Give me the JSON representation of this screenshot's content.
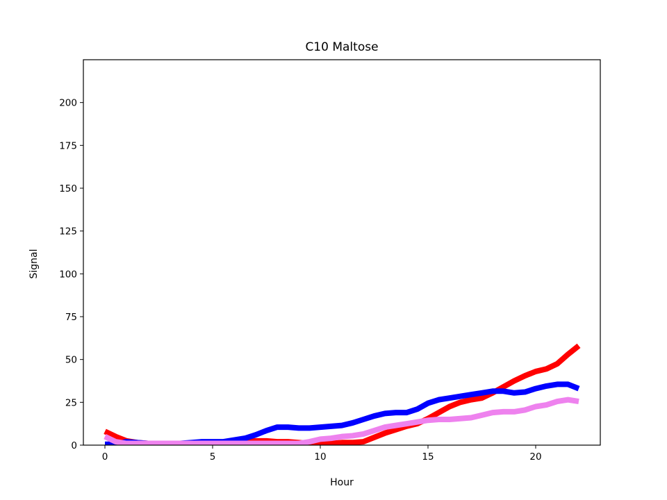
{
  "chart_data": {
    "type": "line",
    "title": "C10 Maltose",
    "xlabel": "Hour",
    "ylabel": "Signal",
    "xlim": [
      -1,
      23
    ],
    "ylim": [
      0,
      225
    ],
    "xticks": [
      0,
      5,
      10,
      15,
      20
    ],
    "yticks": [
      0,
      25,
      50,
      75,
      100,
      125,
      150,
      175,
      200
    ],
    "grid": false,
    "legend": false,
    "x": [
      0,
      0.5,
      1,
      1.5,
      2,
      2.5,
      3,
      3.5,
      4,
      4.5,
      5,
      5.5,
      6,
      6.5,
      7,
      7.5,
      8,
      8.5,
      9,
      9.5,
      10,
      10.5,
      11,
      11.5,
      12,
      12.5,
      13,
      13.5,
      14,
      14.5,
      15,
      15.5,
      16,
      16.5,
      17,
      17.5,
      18,
      18.5,
      19,
      19.5,
      20,
      20.5,
      21,
      21.5,
      22
    ],
    "series": [
      {
        "color": "#ff0000",
        "values": [
          8,
          5,
          2.5,
          1.5,
          1,
          1,
          1,
          1,
          1,
          1,
          1,
          1,
          1.5,
          2,
          2.5,
          2.5,
          2,
          2,
          1.5,
          1,
          0.5,
          1,
          1.5,
          1.5,
          2,
          4.5,
          7,
          9,
          11,
          12.5,
          15.5,
          19,
          22.5,
          25,
          26.5,
          27.5,
          30.5,
          34,
          37.5,
          40.5,
          43,
          44.5,
          47.5,
          53,
          58
        ]
      },
      {
        "color": "#0000ff",
        "values": [
          0.5,
          0.5,
          2,
          1.5,
          1,
          1,
          1,
          1,
          1.5,
          2,
          2,
          2,
          3,
          4,
          6,
          8.5,
          10.5,
          10.5,
          10,
          10,
          10.5,
          11,
          11.5,
          13,
          15,
          17,
          18.5,
          19,
          19,
          21,
          24.5,
          26.5,
          27.5,
          28.5,
          29.5,
          30.5,
          31.5,
          31.5,
          30.5,
          31,
          33,
          34.5,
          35.5,
          35.5,
          33
        ]
      },
      {
        "color": "#ee82ee",
        "values": [
          5,
          2,
          1,
          1,
          1,
          1,
          1,
          1,
          1,
          1,
          1,
          1,
          1,
          1,
          1,
          1,
          1,
          1,
          1,
          2,
          3.5,
          4,
          5,
          5.5,
          6.5,
          8.5,
          10.5,
          11.5,
          12.5,
          13.5,
          14.5,
          15,
          15,
          15.5,
          16,
          17.5,
          19,
          19.5,
          19.5,
          20.5,
          22.5,
          23.5,
          25.5,
          26.5,
          25.5
        ]
      }
    ]
  }
}
